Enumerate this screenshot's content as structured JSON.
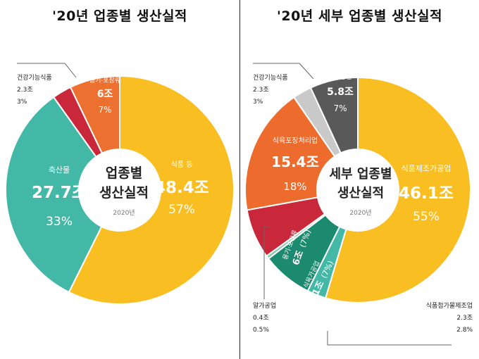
{
  "chart_data": [
    {
      "type": "pie",
      "title": "'20년 업종별 생산실적",
      "center_title": [
        "업종별",
        "생산실적"
      ],
      "center_year": "2020년",
      "slices": [
        {
          "label": "식품 등",
          "value": 48.4,
          "value_text": "48.4조",
          "pct_text": "57%",
          "color": "#F9BE21"
        },
        {
          "label": "축산물",
          "value": 27.7,
          "value_text": "27.7조",
          "pct_text": "33%",
          "color": "#43B8A6"
        },
        {
          "label": "건강기능식품",
          "value": 2.3,
          "value_text": "2.3조",
          "pct_text": "3%",
          "color": "#C8283A"
        },
        {
          "label": "용기·포장류",
          "value": 6.0,
          "value_text": "6조",
          "pct_text": "7%",
          "color": "#EC7030"
        }
      ]
    },
    {
      "type": "pie",
      "title": "'20년 세부 업종별 생산실적",
      "center_title": [
        "세부 업종별",
        "생산실적"
      ],
      "center_year": "2020년",
      "slices": [
        {
          "label": "식품제조가공업",
          "value": 46.1,
          "value_text": "46.1조",
          "pct_text": "55%",
          "color": "#F9BE21"
        },
        {
          "label": "식품첨가물제조업",
          "value": 2.3,
          "value_text": "2.3조",
          "pct_text": "2.8%",
          "color": "#43B8A6"
        },
        {
          "label": "식육가공업",
          "value": 6.1,
          "value_text": "6.1조",
          "pct_text": "(7%)",
          "color": "#1C8A6E"
        },
        {
          "label": "알가공업",
          "value": 0.4,
          "value_text": "0.4조",
          "pct_text": "0.5%",
          "color": "#8DC7B0"
        },
        {
          "label": "용기·포장류",
          "value": 6.0,
          "value_text": "6조",
          "pct_text": "(7%)",
          "color": "#C8283A"
        },
        {
          "label": "식육포장처리업",
          "value": 15.4,
          "value_text": "15.4조",
          "pct_text": "18%",
          "color": "#EC6B2D"
        },
        {
          "label": "건강기능식품",
          "value": 2.3,
          "value_text": "2.3조",
          "pct_text": "3%",
          "color": "#C9C9C9"
        },
        {
          "label": "유가공업",
          "value": 5.8,
          "value_text": "5.8조",
          "pct_text": "7%",
          "color": "#595959"
        }
      ]
    }
  ]
}
